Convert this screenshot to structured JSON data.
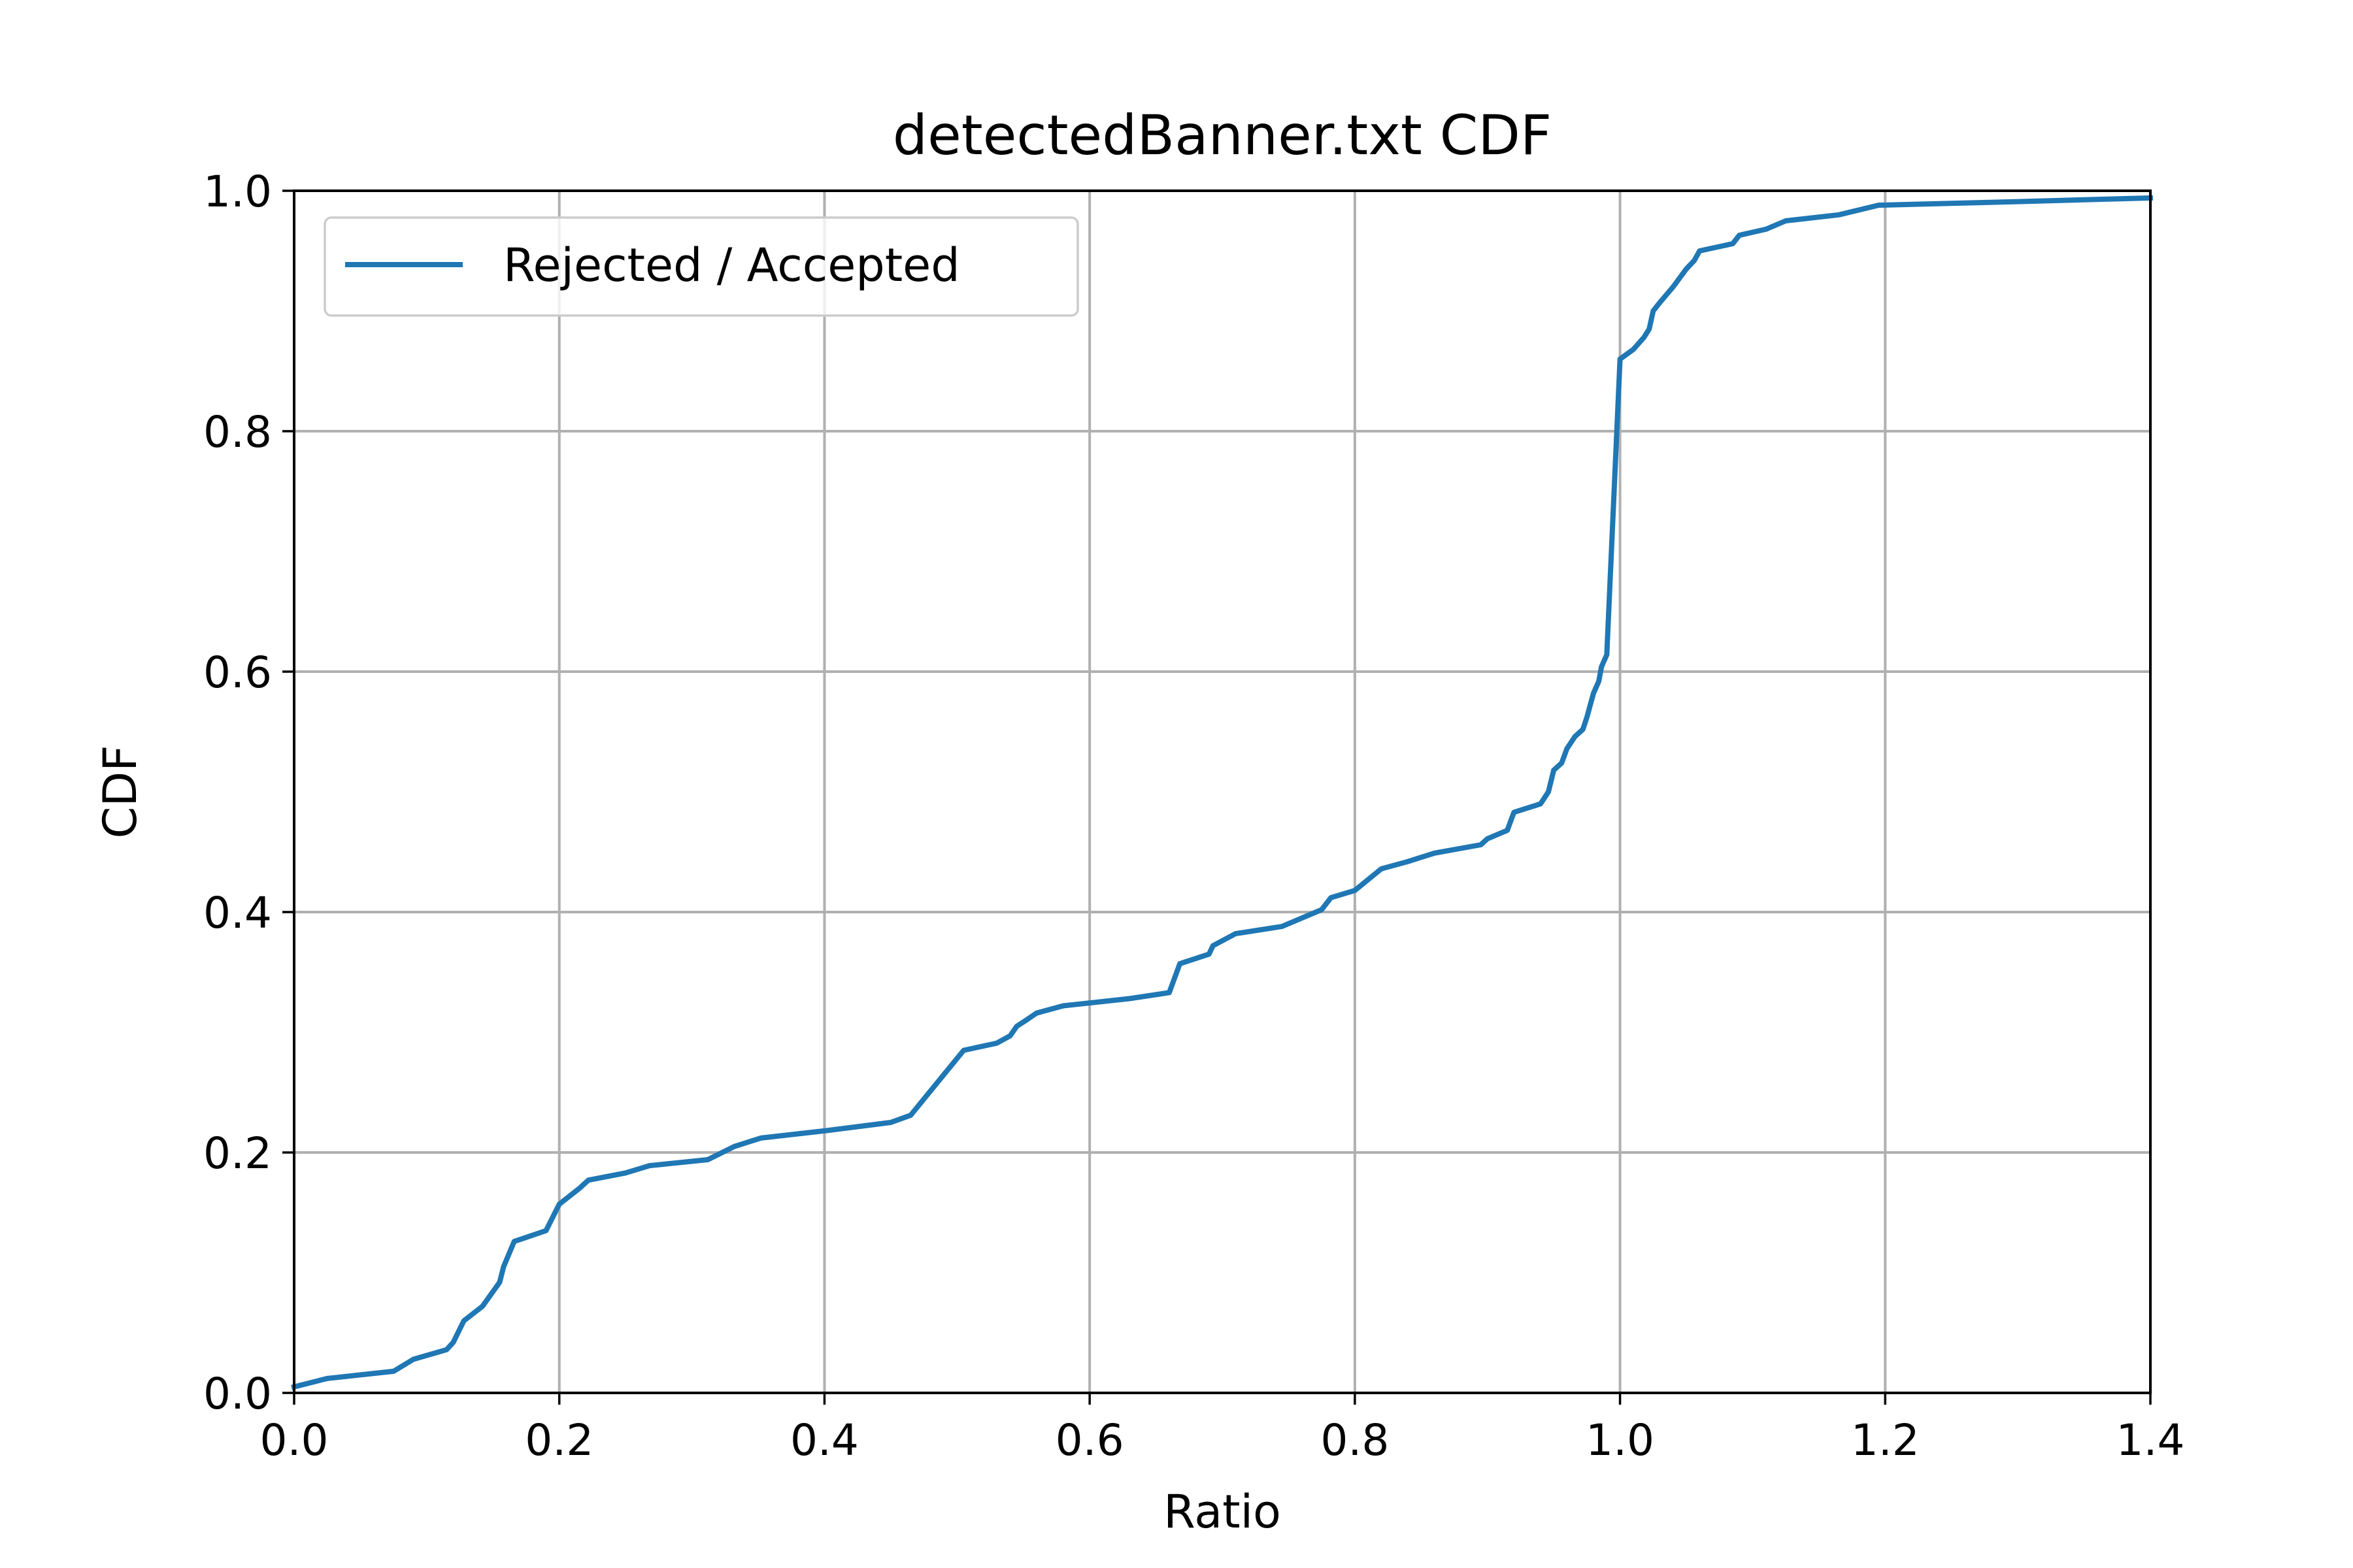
{
  "chart_data": {
    "type": "line",
    "title": "detectedBanner.txt CDF",
    "xlabel": "Ratio",
    "ylabel": "CDF",
    "xlim": [
      0.0,
      1.4
    ],
    "ylim": [
      0.0,
      1.0
    ],
    "xticks": [
      "0.0",
      "0.2",
      "0.4",
      "0.6",
      "0.8",
      "1.0",
      "1.2",
      "1.4"
    ],
    "yticks": [
      "0.0",
      "0.2",
      "0.4",
      "0.6",
      "0.8",
      "1.0"
    ],
    "grid": true,
    "legend_position": "top-left",
    "colors": {
      "series": "#1f77b4",
      "grid": "#b0b0b0"
    },
    "series": [
      {
        "name": "Rejected / Accepted",
        "x": [
          0.0,
          0.025,
          0.05,
          0.075,
          0.09,
          0.115,
          0.12,
          0.128,
          0.142,
          0.155,
          0.158,
          0.166,
          0.19,
          0.2,
          0.215,
          0.222,
          0.25,
          0.268,
          0.312,
          0.332,
          0.352,
          0.4,
          0.45,
          0.465,
          0.505,
          0.53,
          0.54,
          0.545,
          0.552,
          0.56,
          0.58,
          0.63,
          0.66,
          0.668,
          0.69,
          0.693,
          0.71,
          0.745,
          0.775,
          0.782,
          0.8,
          0.82,
          0.84,
          0.86,
          0.895,
          0.9,
          0.915,
          0.92,
          0.94,
          0.946,
          0.95,
          0.956,
          0.96,
          0.966,
          0.972,
          0.975,
          0.977,
          0.98,
          0.984,
          0.986,
          0.99,
          1.0,
          1.01,
          1.018,
          1.022,
          1.025,
          1.03,
          1.04,
          1.05,
          1.056,
          1.06,
          1.085,
          1.09,
          1.11,
          1.125,
          1.165,
          1.195,
          1.3,
          1.4
        ],
        "y": [
          0.005,
          0.012,
          0.015,
          0.018,
          0.028,
          0.036,
          0.042,
          0.06,
          0.072,
          0.092,
          0.105,
          0.126,
          0.135,
          0.157,
          0.17,
          0.177,
          0.183,
          0.189,
          0.194,
          0.205,
          0.212,
          0.218,
          0.225,
          0.231,
          0.285,
          0.291,
          0.297,
          0.305,
          0.31,
          0.316,
          0.322,
          0.328,
          0.333,
          0.357,
          0.365,
          0.372,
          0.382,
          0.388,
          0.402,
          0.412,
          0.418,
          0.436,
          0.442,
          0.449,
          0.456,
          0.461,
          0.468,
          0.483,
          0.49,
          0.5,
          0.518,
          0.524,
          0.536,
          0.546,
          0.552,
          0.562,
          0.57,
          0.582,
          0.592,
          0.604,
          0.614,
          0.86,
          0.868,
          0.878,
          0.885,
          0.9,
          0.907,
          0.92,
          0.935,
          0.942,
          0.95,
          0.956,
          0.963,
          0.968,
          0.975,
          0.98,
          0.988,
          0.991,
          0.994
        ]
      }
    ]
  }
}
